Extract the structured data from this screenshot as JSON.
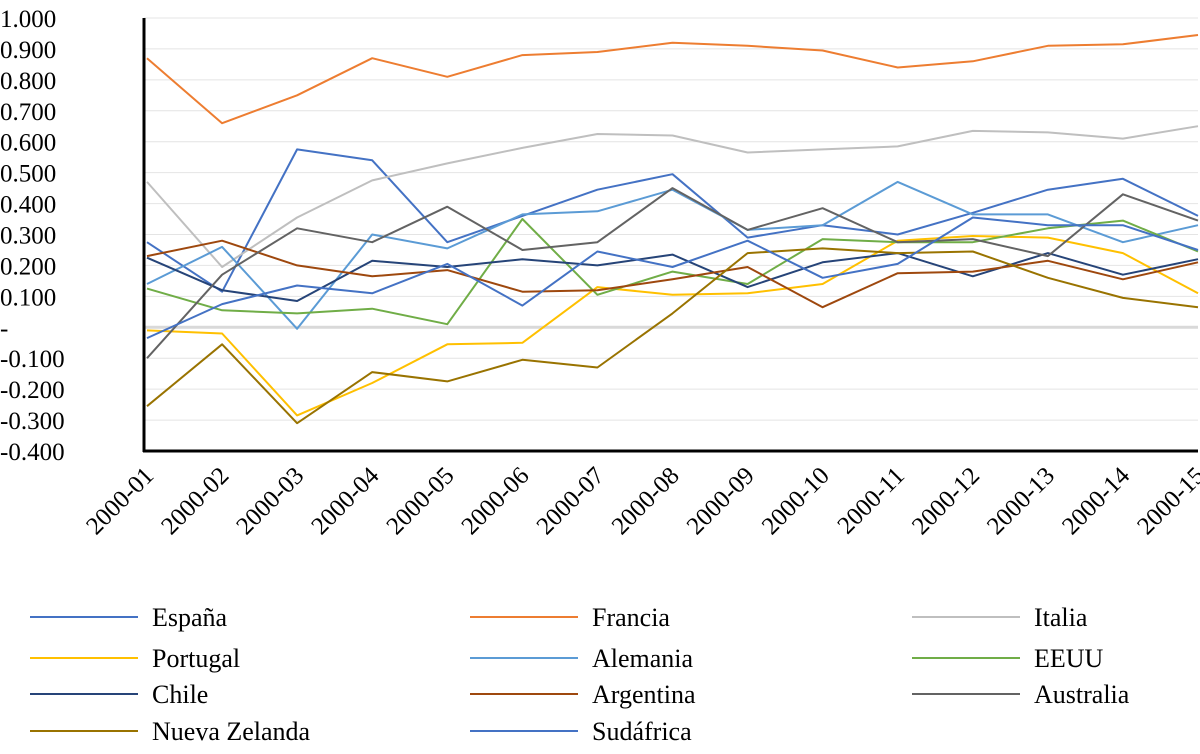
{
  "chart_data": {
    "type": "line",
    "title": "",
    "xlabel": "",
    "ylabel": "",
    "categories": [
      "2000-01",
      "2000-02",
      "2000-03",
      "2000-04",
      "2000-05",
      "2000-06",
      "2000-07",
      "2000-08",
      "2000-09",
      "2000-10",
      "2000-11",
      "2000-12",
      "2000-13",
      "2000-14",
      "2000-15"
    ],
    "ylim": [
      -0.4,
      1.0
    ],
    "yticks": [
      1.0,
      0.9,
      0.8,
      0.7,
      0.6,
      0.5,
      0.4,
      0.3,
      0.2,
      0.1,
      0,
      -0.1,
      -0.2,
      -0.3,
      -0.4
    ],
    "ytick_labels": [
      "1.000",
      "0.900",
      "0.800",
      "0.700",
      "0.600",
      "0.500",
      "0.400",
      "0.300",
      "0.200",
      "0.100",
      "-",
      "-0.100",
      "-0.200",
      "-0.300",
      "-0.400"
    ],
    "grid": "horizontal",
    "legend_position": "bottom",
    "series": [
      {
        "name": "España",
        "color": "#4472C4",
        "values": [
          0.275,
          0.115,
          0.575,
          0.54,
          0.275,
          0.36,
          0.445,
          0.495,
          0.29,
          0.33,
          0.3,
          0.37,
          0.445,
          0.48,
          0.36
        ]
      },
      {
        "name": "Francia",
        "color": "#ED7D31",
        "values": [
          0.87,
          0.66,
          0.75,
          0.87,
          0.81,
          0.88,
          0.89,
          0.92,
          0.91,
          0.895,
          0.84,
          0.86,
          0.91,
          0.915,
          0.945
        ]
      },
      {
        "name": "Italia",
        "color": "#BFBFBF",
        "values": [
          0.47,
          0.195,
          0.355,
          0.475,
          0.53,
          0.58,
          0.625,
          0.62,
          0.565,
          0.575,
          0.585,
          0.635,
          0.63,
          0.61,
          0.65
        ]
      },
      {
        "name": "Portugal",
        "color": "#FFC000",
        "values": [
          -0.01,
          -0.02,
          -0.285,
          -0.18,
          -0.055,
          -0.05,
          0.13,
          0.105,
          0.11,
          0.14,
          0.28,
          0.295,
          0.29,
          0.24,
          0.11
        ]
      },
      {
        "name": "Alemania",
        "color": "#5B9BD5",
        "values": [
          0.14,
          0.26,
          -0.005,
          0.3,
          0.255,
          0.365,
          0.375,
          0.445,
          0.315,
          0.33,
          0.47,
          0.365,
          0.365,
          0.275,
          0.33
        ]
      },
      {
        "name": "EEUU",
        "color": "#70AD47",
        "values": [
          0.125,
          0.055,
          0.045,
          0.06,
          0.01,
          0.35,
          0.105,
          0.18,
          0.14,
          0.285,
          0.275,
          0.275,
          0.32,
          0.345,
          0.245
        ]
      },
      {
        "name": "Chile",
        "color": "#264478",
        "values": [
          0.225,
          0.12,
          0.085,
          0.215,
          0.195,
          0.22,
          0.2,
          0.235,
          0.13,
          0.21,
          0.24,
          0.165,
          0.24,
          0.17,
          0.22
        ]
      },
      {
        "name": "Argentina",
        "color": "#9E480E",
        "values": [
          0.23,
          0.28,
          0.2,
          0.165,
          0.185,
          0.115,
          0.12,
          0.155,
          0.195,
          0.065,
          0.175,
          0.18,
          0.215,
          0.155,
          0.21
        ]
      },
      {
        "name": "Australia",
        "color": "#636363",
        "values": [
          -0.1,
          0.17,
          0.32,
          0.275,
          0.39,
          0.25,
          0.275,
          0.45,
          0.315,
          0.385,
          0.275,
          0.285,
          0.23,
          0.43,
          0.345
        ]
      },
      {
        "name": "Nueva Zelanda",
        "color": "#997300",
        "values": [
          -0.255,
          -0.055,
          -0.31,
          -0.145,
          -0.175,
          -0.105,
          -0.13,
          0.045,
          0.24,
          0.255,
          0.24,
          0.245,
          0.16,
          0.095,
          0.065
        ]
      },
      {
        "name": "Sudáfrica",
        "color": "#4472C4",
        "values": [
          -0.035,
          0.075,
          0.135,
          0.11,
          0.205,
          0.07,
          0.245,
          0.195,
          0.28,
          0.16,
          0.205,
          0.355,
          0.33,
          0.33,
          0.25
        ]
      }
    ]
  }
}
